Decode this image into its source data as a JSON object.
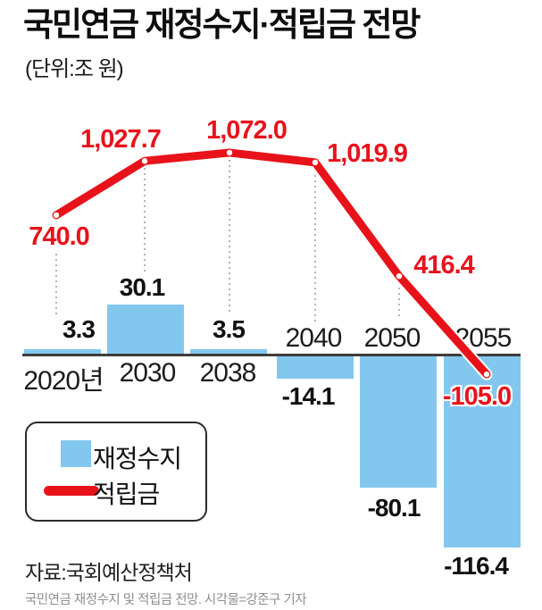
{
  "header": {
    "title": "국민연금 재정수지·적립금 전망",
    "subtitle": "(단위:조 원)"
  },
  "chart_data": {
    "type": "combo",
    "unit": "조 원",
    "categories": [
      "2020년",
      "2030",
      "2038",
      "2040",
      "2050",
      "2055"
    ],
    "series": [
      {
        "name": "재정수지",
        "type": "bar",
        "color": "#82c8ee",
        "values": [
          3.3,
          30.1,
          3.5,
          -14.1,
          -80.1,
          -116.4
        ],
        "labels": [
          "3.3",
          "30.1",
          "3.5",
          "-14.1",
          "-80.1",
          "-116.4"
        ]
      },
      {
        "name": "적립금",
        "type": "line",
        "color": "#e8121b",
        "values": [
          740.0,
          1027.7,
          1072.0,
          1019.9,
          416.4,
          -105.0
        ],
        "labels": [
          "740.0",
          "1,027.7",
          "1,072.0",
          "1,019.9",
          "416.4",
          "-105.0"
        ]
      }
    ],
    "baseline": 0,
    "grid": false,
    "legend_position": "bottom-left"
  },
  "legend": {
    "items": [
      {
        "label": "재정수지",
        "swatch": "square",
        "color": "#82c8ee"
      },
      {
        "label": "적립금",
        "swatch": "line",
        "color": "#e8121b"
      }
    ]
  },
  "source": "자료:국회예산정책처",
  "caption": "국민연금 재정수지 및 적립금 전망. 시각물=강준구 기자"
}
